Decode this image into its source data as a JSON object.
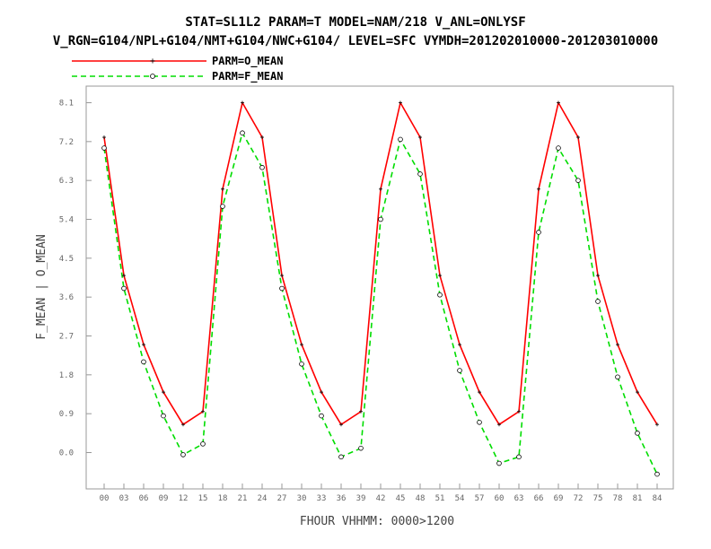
{
  "header": {
    "title_line1": "STAT=SL1L2 PARAM=T MODEL=NAM/218 V_ANL=ONLYSF",
    "title_line2": "V_RGN=G104/NPL+G104/NMT+G104/NWC+G104/ LEVEL=SFC VYMDH=201202010000-201203010000"
  },
  "chart_data": {
    "type": "line",
    "title": "STAT=SL1L2 PARAM=T MODEL=NAM/218 V_ANL=ONLYSF",
    "subtitle": "V_RGN=G104/NPL+G104/NMT+G104/NWC+G104/ LEVEL=SFC VYMDH=201202010000-201203010000",
    "xlabel": "FHOUR VHHMM: 0000>1200",
    "ylabel": "F_MEAN | O_MEAN",
    "categories": [
      "00",
      "03",
      "06",
      "09",
      "12",
      "15",
      "18",
      "21",
      "24",
      "27",
      "30",
      "33",
      "36",
      "39",
      "42",
      "45",
      "48",
      "51",
      "54",
      "57",
      "60",
      "63",
      "66",
      "69",
      "72",
      "75",
      "78",
      "81",
      "84"
    ],
    "series": [
      {
        "name": "PARM=O_MEAN",
        "color": "#ff0000",
        "style": "solid",
        "marker": "plus",
        "values": [
          7.3,
          4.1,
          2.5,
          1.4,
          0.65,
          0.95,
          6.1,
          8.1,
          7.3,
          4.1,
          2.5,
          1.4,
          0.65,
          0.95,
          6.1,
          8.1,
          7.3,
          4.1,
          2.5,
          1.4,
          0.65,
          0.95,
          6.1,
          8.1,
          7.3,
          4.1,
          2.5,
          1.4,
          0.65
        ]
      },
      {
        "name": "PARM=F_MEAN",
        "color": "#00dd00",
        "style": "dashed",
        "marker": "circle",
        "values": [
          7.05,
          3.8,
          2.1,
          0.85,
          -0.05,
          0.2,
          5.7,
          7.4,
          6.6,
          3.8,
          2.05,
          0.85,
          -0.1,
          0.1,
          5.4,
          7.25,
          6.45,
          3.65,
          1.9,
          0.7,
          -0.25,
          -0.1,
          5.1,
          7.05,
          6.3,
          3.5,
          1.75,
          0.45,
          -0.5
        ]
      }
    ],
    "yticks": [
      "0.0",
      "0.9",
      "1.8",
      "2.7",
      "3.6",
      "4.5",
      "5.4",
      "6.3",
      "7.2",
      "8.1"
    ],
    "ylim": [
      -0.9,
      8.1
    ],
    "grid": false,
    "legend": "top-left"
  }
}
